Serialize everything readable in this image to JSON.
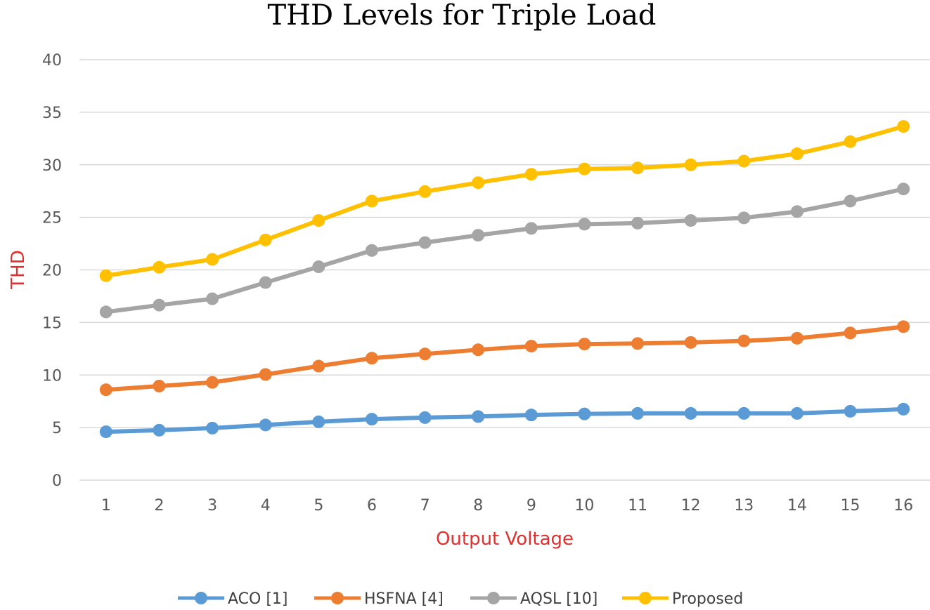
{
  "chart_data": {
    "type": "line",
    "title": "THD Levels for Triple  Load",
    "xlabel": "Output Voltage",
    "ylabel": "THD",
    "categories": [
      "1",
      "2",
      "3",
      "4",
      "5",
      "6",
      "7",
      "8",
      "9",
      "10",
      "11",
      "12",
      "13",
      "14",
      "15",
      "16"
    ],
    "ylim": [
      0,
      40
    ],
    "yticks": [
      0,
      5,
      10,
      15,
      20,
      25,
      30,
      35,
      40
    ],
    "grid": true,
    "legend_position": "bottom",
    "colors": {
      "title": "#000000",
      "axis_label": "#E03030",
      "tick": "#595959",
      "grid": "#D9D9D9",
      "legend_text": "#404040"
    },
    "series": [
      {
        "name": "ACO [1]",
        "color": "#5B9BD5",
        "values": [
          4.6,
          4.75,
          4.95,
          5.25,
          5.55,
          5.8,
          5.95,
          6.05,
          6.2,
          6.3,
          6.35,
          6.35,
          6.35,
          6.35,
          6.55,
          6.75
        ]
      },
      {
        "name": "HSFNA [4]",
        "color": "#ED7D31",
        "values": [
          8.6,
          8.95,
          9.3,
          10.05,
          10.85,
          11.6,
          12.0,
          12.4,
          12.75,
          12.95,
          13.0,
          13.1,
          13.25,
          13.5,
          14.0,
          14.6
        ]
      },
      {
        "name": "AQSL [10]",
        "color": "#A5A5A5",
        "values": [
          16.0,
          16.65,
          17.25,
          18.8,
          20.3,
          21.85,
          22.6,
          23.3,
          23.95,
          24.35,
          24.45,
          24.7,
          24.95,
          25.55,
          26.55,
          27.7
        ]
      },
      {
        "name": "Proposed",
        "color": "#FFC000",
        "values": [
          19.45,
          20.25,
          21.0,
          22.85,
          24.7,
          26.55,
          27.45,
          28.3,
          29.1,
          29.6,
          29.7,
          30.0,
          30.35,
          31.05,
          32.2,
          33.65
        ]
      }
    ]
  }
}
